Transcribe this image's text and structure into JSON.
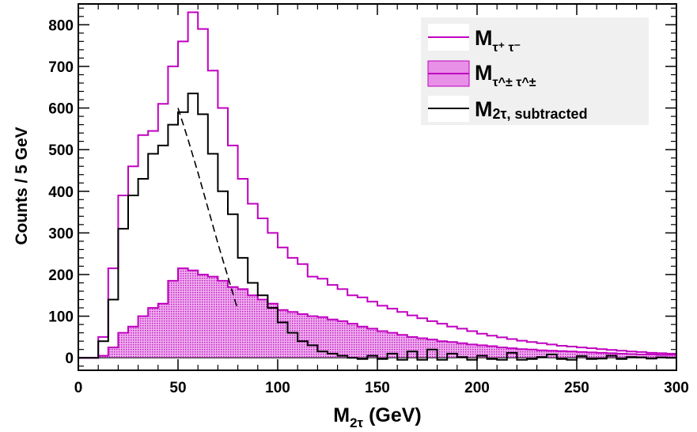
{
  "chart_data": {
    "type": "histogram",
    "bin_width": 5,
    "xlim": [
      0,
      300
    ],
    "ylim": [
      -30,
      850
    ],
    "xlabel": {
      "main": "M",
      "sub": "2τ",
      "suffix": " (GeV)"
    },
    "ylabel": "Counts / 5 GeV",
    "xticks": [
      0,
      50,
      100,
      150,
      200,
      250,
      300
    ],
    "yticks": [
      0,
      100,
      200,
      300,
      400,
      500,
      600,
      700,
      800
    ],
    "legend_position": "top-right",
    "series": [
      {
        "name": {
          "main": "M",
          "sub": "τ⁺ τ⁻"
        },
        "style": "line",
        "color": "#c000c0",
        "x_start": 0,
        "values": [
          0,
          0,
          50,
          215,
          390,
          460,
          535,
          545,
          610,
          700,
          760,
          830,
          790,
          690,
          600,
          510,
          430,
          370,
          335,
          300,
          265,
          240,
          225,
          195,
          190,
          175,
          165,
          150,
          145,
          135,
          125,
          118,
          110,
          102,
          95,
          88,
          82,
          75,
          70,
          64,
          58,
          53,
          49,
          45,
          41,
          38,
          35,
          32,
          29,
          27,
          25,
          23,
          21,
          19,
          17,
          15,
          14,
          12,
          11,
          10
        ]
      },
      {
        "name": {
          "main": "M",
          "sub": "τ^± τ^±"
        },
        "style": "fill",
        "color": "#c000c0",
        "fill": "#e890e8",
        "x_start": 0,
        "values": [
          0,
          0,
          5,
          25,
          60,
          75,
          100,
          120,
          130,
          185,
          215,
          210,
          200,
          195,
          185,
          170,
          165,
          150,
          140,
          130,
          115,
          110,
          105,
          100,
          98,
          92,
          88,
          82,
          75,
          70,
          64,
          60,
          55,
          50,
          47,
          44,
          40,
          38,
          35,
          32,
          30,
          28,
          25,
          23,
          21,
          20,
          18,
          17,
          16,
          15,
          14,
          13,
          12,
          11,
          10,
          9,
          8,
          8,
          7,
          7
        ]
      },
      {
        "name": {
          "main": "M",
          "sub": "2τ, subtracted"
        },
        "style": "line",
        "color": "#000000",
        "x_start": 0,
        "values": [
          0,
          0,
          40,
          140,
          310,
          390,
          430,
          490,
          510,
          560,
          590,
          635,
          585,
          490,
          400,
          345,
          240,
          180,
          150,
          120,
          85,
          60,
          40,
          30,
          15,
          10,
          5,
          0,
          -3,
          5,
          -3,
          10,
          -5,
          15,
          -5,
          20,
          -5,
          10,
          2,
          -5,
          5,
          -3,
          -5,
          12,
          -5,
          -3,
          2,
          8,
          -3,
          -5,
          4,
          -3,
          -2,
          5,
          -3,
          2,
          1,
          -2,
          1,
          0
        ]
      }
    ],
    "fit": {
      "style": "dashed",
      "color": "#000000",
      "x": [
        50,
        55,
        60,
        65,
        70,
        75,
        80
      ],
      "y": [
        600,
        525,
        445,
        360,
        275,
        195,
        115
      ]
    }
  }
}
